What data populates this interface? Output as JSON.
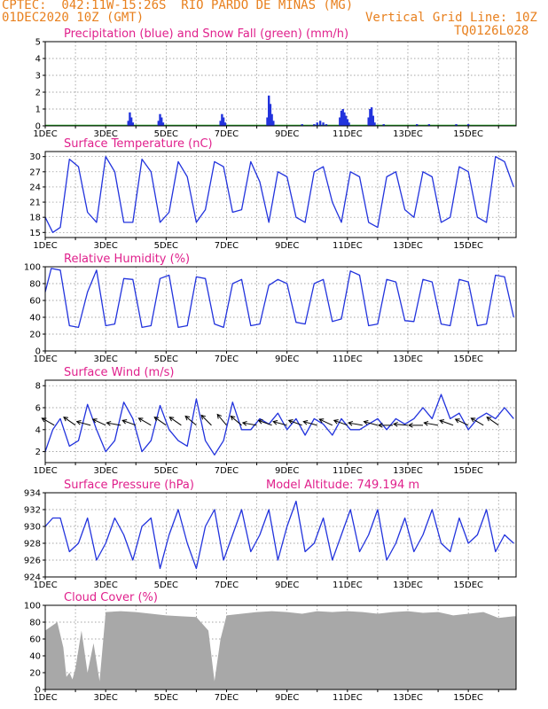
{
  "header": {
    "line1_left": "CPTEC:  042:11W-15:26S  RIO PARDO DE MINAS (MG)",
    "line2_left": "01DEC2020 10Z (GMT)",
    "line2_right": "Vertical Grid Line: 10Z",
    "line3_right": "TQ0126L028"
  },
  "colors": {
    "header": "#e8801e",
    "title": "#e0208c",
    "line": "#2233dd",
    "snow": "#22aa22",
    "cloud": "#a8a8a8"
  },
  "x_tick_labels": [
    "1DEC",
    "3DEC",
    "5DEC",
    "7DEC",
    "9DEC",
    "11DEC",
    "13DEC",
    "15DEC"
  ],
  "chart_data": [
    {
      "type": "bar",
      "title": "Precipitation (blue) and Snow Fall (green) (mm/h)",
      "ylim": [
        0,
        5
      ],
      "yticks": [
        "0",
        "1",
        "2",
        "3",
        "4",
        "5"
      ],
      "xlim_days": [
        1,
        16.58
      ],
      "series": [
        {
          "name": "Precipitation",
          "points": [
            [
              3.75,
              0.3
            ],
            [
              3.8,
              0.8
            ],
            [
              3.85,
              0.5
            ],
            [
              3.9,
              0.2
            ],
            [
              4.75,
              0.3
            ],
            [
              4.8,
              0.7
            ],
            [
              4.85,
              0.5
            ],
            [
              4.9,
              0.2
            ],
            [
              6.8,
              0.3
            ],
            [
              6.85,
              0.7
            ],
            [
              6.9,
              0.5
            ],
            [
              6.95,
              0.2
            ],
            [
              8.35,
              0.5
            ],
            [
              8.4,
              1.8
            ],
            [
              8.45,
              1.3
            ],
            [
              8.5,
              0.7
            ],
            [
              8.55,
              0.3
            ],
            [
              9.5,
              0.1
            ],
            [
              9.9,
              0.1
            ],
            [
              10.0,
              0.2
            ],
            [
              10.1,
              0.3
            ],
            [
              10.2,
              0.2
            ],
            [
              10.3,
              0.1
            ],
            [
              10.75,
              0.5
            ],
            [
              10.8,
              0.9
            ],
            [
              10.85,
              1.0
            ],
            [
              10.9,
              0.8
            ],
            [
              10.95,
              0.6
            ],
            [
              11.0,
              0.4
            ],
            [
              11.05,
              0.2
            ],
            [
              11.7,
              0.5
            ],
            [
              11.75,
              1.0
            ],
            [
              11.8,
              1.1
            ],
            [
              11.85,
              0.6
            ],
            [
              11.9,
              0.2
            ],
            [
              12.2,
              0.1
            ],
            [
              13.3,
              0.1
            ],
            [
              13.7,
              0.1
            ],
            [
              14.6,
              0.1
            ],
            [
              15.0,
              0.1
            ]
          ]
        },
        {
          "name": "Snow Fall",
          "points": []
        }
      ]
    },
    {
      "type": "line",
      "title": "Surface Temperature (nC)",
      "ylim": [
        14,
        31
      ],
      "yticks": [
        "15",
        "18",
        "21",
        "24",
        "27",
        "30"
      ],
      "series": [
        {
          "name": "Temperature",
          "x": [
            1.0,
            1.25,
            1.5,
            1.8,
            2.1,
            2.4,
            2.7,
            3.0,
            3.3,
            3.6,
            3.9,
            4.2,
            4.5,
            4.8,
            5.1,
            5.4,
            5.7,
            6.0,
            6.3,
            6.6,
            6.9,
            7.2,
            7.5,
            7.8,
            8.1,
            8.4,
            8.7,
            9.0,
            9.3,
            9.6,
            9.9,
            10.2,
            10.5,
            10.8,
            11.1,
            11.4,
            11.7,
            12.0,
            12.3,
            12.6,
            12.9,
            13.2,
            13.5,
            13.8,
            14.1,
            14.4,
            14.7,
            15.0,
            15.3,
            15.6,
            15.9,
            16.2,
            16.5
          ],
          "y": [
            18,
            15,
            16,
            29.5,
            28,
            19,
            17,
            30,
            27,
            17,
            17,
            29.5,
            27,
            17,
            19,
            29,
            26,
            17,
            19.5,
            29,
            28,
            19,
            19.5,
            29,
            25,
            17,
            27,
            26,
            18,
            17,
            27,
            28,
            21,
            17,
            27,
            26,
            17,
            16,
            26,
            27,
            19.5,
            18,
            27,
            26,
            17,
            18,
            28,
            27,
            18,
            17,
            30,
            29,
            24
          ]
        }
      ]
    },
    {
      "type": "line",
      "title": "Relative Humidity (%)",
      "ylim": [
        0,
        100
      ],
      "yticks": [
        "0",
        "20",
        "40",
        "60",
        "80",
        "100"
      ],
      "series": [
        {
          "name": "Humidity",
          "x": [
            1.0,
            1.2,
            1.5,
            1.8,
            2.1,
            2.4,
            2.7,
            3.0,
            3.3,
            3.6,
            3.9,
            4.2,
            4.5,
            4.8,
            5.1,
            5.4,
            5.7,
            6.0,
            6.3,
            6.6,
            6.9,
            7.2,
            7.5,
            7.8,
            8.1,
            8.4,
            8.7,
            9.0,
            9.3,
            9.6,
            9.9,
            10.2,
            10.5,
            10.8,
            11.1,
            11.4,
            11.7,
            12.0,
            12.3,
            12.6,
            12.9,
            13.2,
            13.5,
            13.8,
            14.1,
            14.4,
            14.7,
            15.0,
            15.3,
            15.6,
            15.9,
            16.2,
            16.5
          ],
          "y": [
            70,
            98,
            96,
            30,
            28,
            70,
            96,
            30,
            32,
            86,
            85,
            28,
            30,
            86,
            90,
            28,
            30,
            88,
            86,
            32,
            28,
            80,
            85,
            30,
            32,
            78,
            85,
            80,
            34,
            32,
            80,
            85,
            35,
            38,
            95,
            90,
            30,
            32,
            85,
            82,
            36,
            35,
            85,
            82,
            32,
            30,
            85,
            82,
            30,
            32,
            90,
            88,
            40
          ]
        }
      ]
    },
    {
      "type": "line",
      "title": "Surface Wind (m/s)",
      "ylim": [
        1,
        8.5
      ],
      "yticks": [
        "2",
        "4",
        "6",
        "8"
      ],
      "series": [
        {
          "name": "Wind speed",
          "x": [
            1.0,
            1.25,
            1.5,
            1.8,
            2.1,
            2.4,
            2.7,
            3.0,
            3.3,
            3.6,
            3.9,
            4.2,
            4.5,
            4.8,
            5.1,
            5.4,
            5.7,
            6.0,
            6.3,
            6.6,
            6.9,
            7.2,
            7.5,
            7.8,
            8.1,
            8.4,
            8.7,
            9.0,
            9.3,
            9.6,
            9.9,
            10.2,
            10.5,
            10.8,
            11.1,
            11.4,
            11.7,
            12.0,
            12.3,
            12.6,
            12.9,
            13.2,
            13.5,
            13.8,
            14.1,
            14.4,
            14.7,
            15.0,
            15.3,
            15.6,
            15.9,
            16.2,
            16.5
          ],
          "y": [
            2,
            4,
            5,
            2.5,
            3,
            6.3,
            4,
            2,
            3,
            6.5,
            5,
            2,
            3,
            6.2,
            4,
            3,
            2.5,
            6.8,
            3,
            1.7,
            3,
            6.5,
            4,
            4,
            5,
            4.5,
            5.5,
            4,
            5,
            3.5,
            5,
            4.5,
            3.5,
            5,
            4,
            4,
            4.5,
            5,
            4,
            5,
            4.5,
            5,
            6,
            5,
            7.2,
            5,
            5.5,
            4,
            5,
            5.5,
            5,
            6,
            5
          ]
        }
      ],
      "vectors": [
        [
          1.3,
          -30
        ],
        [
          2.0,
          -35
        ],
        [
          2.5,
          -15
        ],
        [
          3.0,
          -25
        ],
        [
          3.5,
          -10
        ],
        [
          4.0,
          -20
        ],
        [
          4.5,
          -30
        ],
        [
          5.0,
          -35
        ],
        [
          5.5,
          -35
        ],
        [
          6.0,
          -40
        ],
        [
          6.5,
          -45
        ],
        [
          7.0,
          -50
        ],
        [
          7.5,
          -40
        ],
        [
          8.0,
          -10
        ],
        [
          8.5,
          -20
        ],
        [
          9.0,
          -15
        ],
        [
          9.5,
          -20
        ],
        [
          10.0,
          -15
        ],
        [
          10.5,
          -25
        ],
        [
          11.0,
          -20
        ],
        [
          11.5,
          -10
        ],
        [
          12.0,
          -15
        ],
        [
          12.5,
          0
        ],
        [
          13.0,
          -5
        ],
        [
          13.5,
          0
        ],
        [
          14.0,
          -10
        ],
        [
          14.5,
          -20
        ],
        [
          15.0,
          -25
        ],
        [
          15.5,
          -30
        ],
        [
          16.0,
          -35
        ]
      ]
    },
    {
      "type": "line",
      "title": "Surface Pressure (hPa)",
      "annotation": "Model Altitude: 749.194 m",
      "ylim": [
        924,
        934
      ],
      "yticks": [
        "924",
        "926",
        "928",
        "930",
        "932",
        "934"
      ],
      "series": [
        {
          "name": "Pressure",
          "x": [
            1.0,
            1.25,
            1.5,
            1.8,
            2.1,
            2.4,
            2.7,
            3.0,
            3.3,
            3.6,
            3.9,
            4.2,
            4.5,
            4.8,
            5.1,
            5.4,
            5.7,
            6.0,
            6.3,
            6.6,
            6.9,
            7.2,
            7.5,
            7.8,
            8.1,
            8.4,
            8.7,
            9.0,
            9.3,
            9.6,
            9.9,
            10.2,
            10.5,
            10.8,
            11.1,
            11.4,
            11.7,
            12.0,
            12.3,
            12.6,
            12.9,
            13.2,
            13.5,
            13.8,
            14.1,
            14.4,
            14.7,
            15.0,
            15.3,
            15.6,
            15.9,
            16.2,
            16.5
          ],
          "y": [
            930,
            931,
            931,
            927,
            928,
            931,
            926,
            928,
            931,
            929,
            926,
            930,
            931,
            925,
            929,
            932,
            928,
            925,
            930,
            932,
            926,
            929,
            932,
            927,
            929,
            932,
            926,
            930,
            933,
            927,
            928,
            931,
            926,
            929,
            932,
            927,
            929,
            932,
            926,
            928,
            931,
            927,
            929,
            932,
            928,
            927,
            931,
            928,
            929,
            932,
            927,
            929,
            928
          ]
        }
      ]
    },
    {
      "type": "area",
      "title": "Cloud Cover (%)",
      "ylim": [
        0,
        100
      ],
      "yticks": [
        "0",
        "20",
        "40",
        "60",
        "80",
        "100"
      ],
      "series": [
        {
          "name": "Cloud cover",
          "x": [
            1.0,
            1.2,
            1.4,
            1.6,
            1.7,
            1.8,
            1.9,
            2.0,
            2.2,
            2.4,
            2.6,
            2.8,
            3.0,
            3.5,
            4.0,
            4.5,
            5.0,
            5.5,
            6.0,
            6.4,
            6.6,
            6.8,
            7.0,
            7.5,
            8.0,
            8.5,
            9.0,
            9.5,
            10.0,
            10.5,
            11.0,
            11.5,
            12.0,
            12.5,
            13.0,
            13.5,
            14.0,
            14.5,
            15.0,
            15.5,
            16.0,
            16.5
          ],
          "y": [
            70,
            75,
            80,
            50,
            15,
            20,
            12,
            25,
            70,
            20,
            55,
            10,
            92,
            93,
            92,
            90,
            88,
            87,
            86,
            70,
            10,
            60,
            88,
            90,
            92,
            93,
            92,
            90,
            93,
            92,
            93,
            92,
            90,
            92,
            93,
            91,
            92,
            88,
            90,
            92,
            85,
            87
          ]
        }
      ]
    }
  ]
}
